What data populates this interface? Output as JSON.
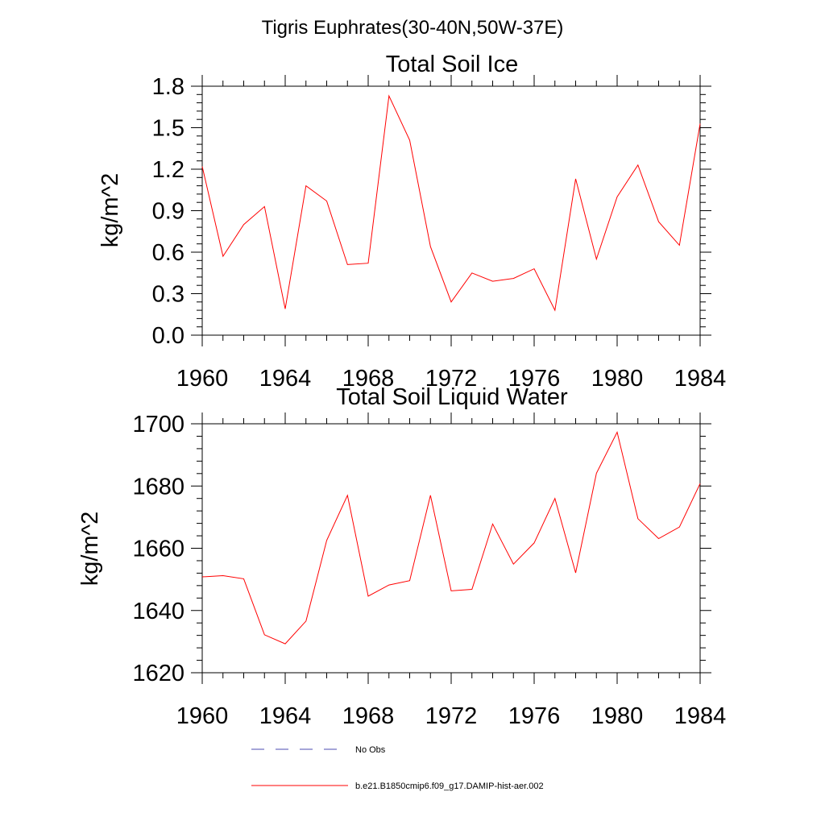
{
  "figure": {
    "title": "Tigris Euphrates(30-40N,50W-37E)"
  },
  "legend": [
    {
      "label": "No Obs",
      "color": "#4b4bb0",
      "style": "dashed"
    },
    {
      "label": "b.e21.B1850cmip6.f09_g17.DAMIP-hist-aer.002",
      "color": "#ff0000",
      "style": "solid"
    }
  ],
  "chart_data": [
    {
      "type": "line",
      "title": "Total Soil Ice",
      "ylabel": "kg/m^2",
      "xlabel": "",
      "xlim": [
        1960,
        1984
      ],
      "ylim": [
        0.0,
        1.8
      ],
      "x_ticks": [
        "1960",
        "1964",
        "1968",
        "1972",
        "1976",
        "1980",
        "1984"
      ],
      "y_ticks": [
        "0.0",
        "0.3",
        "0.6",
        "0.9",
        "1.2",
        "1.5",
        "1.8"
      ],
      "grid": false,
      "series": [
        {
          "color": "#ff0000",
          "x": [
            1960,
            1961,
            1962,
            1963,
            1964,
            1965,
            1966,
            1967,
            1968,
            1969,
            1970,
            1971,
            1972,
            1973,
            1974,
            1975,
            1976,
            1977,
            1978,
            1979,
            1980,
            1981,
            1982,
            1983,
            1984
          ],
          "values": [
            1.22,
            0.57,
            0.8,
            0.93,
            0.19,
            1.08,
            0.97,
            0.51,
            0.52,
            1.73,
            1.41,
            0.64,
            0.24,
            0.45,
            0.39,
            0.41,
            0.48,
            0.18,
            1.13,
            0.55,
            1.0,
            1.23,
            0.82,
            0.65,
            1.53
          ]
        }
      ]
    },
    {
      "type": "line",
      "title": "Total Soil Liquid Water",
      "ylabel": "kg/m^2",
      "xlabel": "",
      "xlim": [
        1960,
        1984
      ],
      "ylim": [
        1620,
        1700
      ],
      "x_ticks": [
        "1960",
        "1964",
        "1968",
        "1972",
        "1976",
        "1980",
        "1984"
      ],
      "y_ticks": [
        "1620",
        "1640",
        "1660",
        "1680",
        "1700"
      ],
      "grid": false,
      "series": [
        {
          "color": "#ff0000",
          "x": [
            1960,
            1961,
            1962,
            1963,
            1964,
            1965,
            1966,
            1967,
            1968,
            1969,
            1970,
            1971,
            1972,
            1973,
            1974,
            1975,
            1976,
            1977,
            1978,
            1979,
            1980,
            1981,
            1982,
            1983,
            1984
          ],
          "values": [
            1650.8,
            1651.2,
            1650.2,
            1632.2,
            1629.3,
            1636.6,
            1662.5,
            1677.0,
            1644.6,
            1648.2,
            1649.6,
            1677.0,
            1646.3,
            1646.8,
            1667.8,
            1654.9,
            1661.7,
            1676.0,
            1652.1,
            1684.1,
            1697.3,
            1669.5,
            1663.1,
            1666.8,
            1680.8
          ]
        }
      ]
    }
  ]
}
